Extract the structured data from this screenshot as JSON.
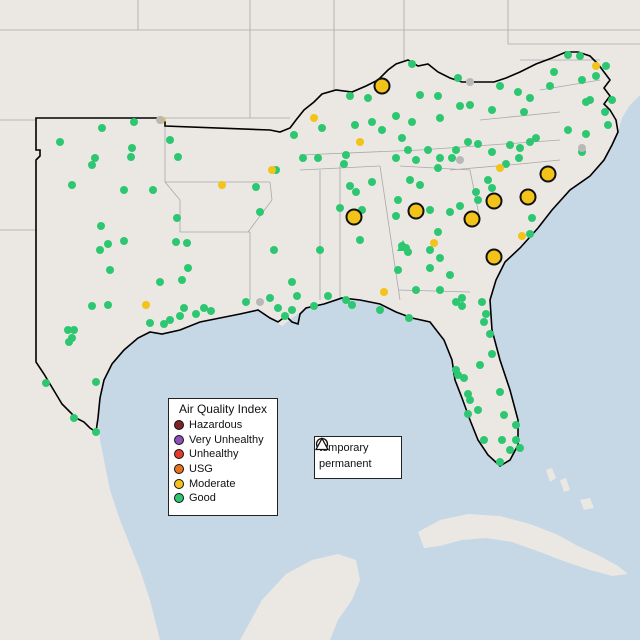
{
  "legend": {
    "title": "Air Quality Index",
    "categories": [
      {
        "label": "Hazardous",
        "color": "#7e2323"
      },
      {
        "label": "Very Unhealthy",
        "color": "#8f4fb5"
      },
      {
        "label": "Unhealthy",
        "color": "#e23a2b"
      },
      {
        "label": "USG",
        "color": "#e8731c"
      },
      {
        "label": "Moderate",
        "color": "#f2c318"
      },
      {
        "label": "Good",
        "color": "#2ec771"
      }
    ]
  },
  "monitor_types": [
    {
      "label": "temporary",
      "icon": "circle-icon"
    },
    {
      "label": "permanent",
      "icon": "triangle-icon"
    }
  ],
  "colors": {
    "water": "#c6d7e6",
    "land": "#e8e4e0",
    "outside_land": "#efece8",
    "region_outline": "#000000",
    "state_lines": "#a8a8a8",
    "no_data": "#b8b8b8"
  }
}
